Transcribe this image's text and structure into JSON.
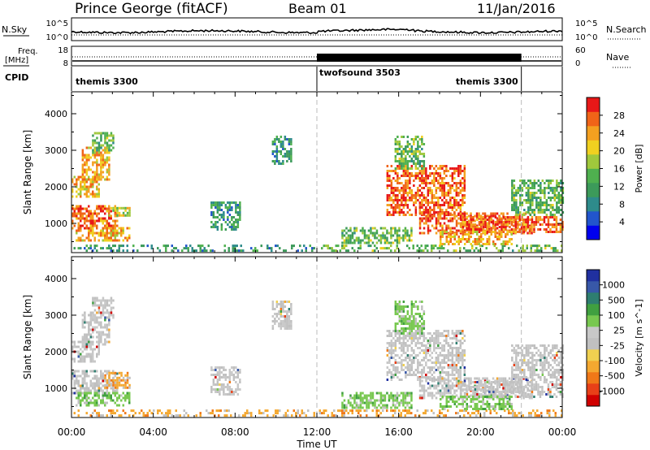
{
  "header": {
    "station": "Prince George (fitACF)",
    "beam": "Beam 01",
    "date": "11/Jan/2016"
  },
  "noise_panel": {
    "left_label": "N.Sky",
    "left_ticks": [
      "10^5",
      "10^0"
    ],
    "right_ticks": [
      "10^5",
      "10^0"
    ],
    "right_label": "N.Search"
  },
  "freq_panel": {
    "left_label_top": "Freq.",
    "left_label_bottom": "[MHz]",
    "left_ticks": [
      "18",
      "8"
    ],
    "right_ticks": [
      "60",
      "0"
    ],
    "right_label": "Nave"
  },
  "cpid": {
    "label": "CPID",
    "modes": [
      {
        "name": "themis 3300",
        "start_h": 0,
        "end_h": 12
      },
      {
        "name": "twofsound 3503",
        "start_h": 12,
        "end_h": 22
      },
      {
        "name": "themis 3300",
        "start_h": 22,
        "end_h": 24
      }
    ]
  },
  "x_axis": {
    "label": "Time UT",
    "ticks": [
      "00:00",
      "04:00",
      "08:00",
      "12:00",
      "16:00",
      "20:00",
      "00:00"
    ],
    "tick_hours": [
      0,
      4,
      8,
      12,
      16,
      20,
      24
    ],
    "markers_h": [
      12,
      22
    ]
  },
  "colors": {
    "power": [
      "#0000ee",
      "#2255cc",
      "#2e8b8b",
      "#3c9a5a",
      "#4fb04f",
      "#a0c83c",
      "#f0d020",
      "#f4a020",
      "#f06418",
      "#e81818"
    ],
    "velocity": [
      "#d00000",
      "#e84018",
      "#f07818",
      "#f4a830",
      "#f0d050",
      "#c0c0c0",
      "#c8c8c8",
      "#78c850",
      "#40a040",
      "#2e7e70",
      "#3858a8",
      "#2030a0"
    ]
  },
  "chart_data": [
    {
      "type": "heatmap",
      "name": "power",
      "ylabel": "Slant Range [km]",
      "ylim": [
        200,
        4600
      ],
      "yticks": [
        "1000",
        "2000",
        "3000",
        "4000"
      ],
      "ytick_values": [
        1000,
        2000,
        3000,
        4000
      ],
      "colorbar_label": "Power [dB]",
      "colorbar_ticks": [
        "4",
        "8",
        "12",
        "16",
        "20",
        "24",
        "28"
      ],
      "colorbar_range": [
        0,
        30
      ],
      "regions": [
        {
          "t0": 0.0,
          "t1": 1.3,
          "r0": 1700,
          "r1": 2300,
          "level": 20
        },
        {
          "t0": 0.5,
          "t1": 1.8,
          "r0": 2200,
          "r1": 3100,
          "level": 20
        },
        {
          "t0": 1.0,
          "t1": 2.0,
          "r0": 2900,
          "r1": 3500,
          "level": 12
        },
        {
          "t0": 0.0,
          "t1": 2.2,
          "r0": 850,
          "r1": 1500,
          "level": 24
        },
        {
          "t0": 0.2,
          "t1": 2.8,
          "r0": 500,
          "r1": 900,
          "level": 20
        },
        {
          "t0": 1.8,
          "t1": 2.8,
          "r0": 1200,
          "r1": 1450,
          "level": 16
        },
        {
          "t0": 0.0,
          "t1": 11.9,
          "r0": 220,
          "r1": 420,
          "level": 8
        },
        {
          "t0": 6.8,
          "t1": 8.2,
          "r0": 800,
          "r1": 1600,
          "level": 8
        },
        {
          "t0": 9.8,
          "t1": 10.7,
          "r0": 2600,
          "r1": 3400,
          "level": 8
        },
        {
          "t0": 12.0,
          "t1": 24.0,
          "r0": 220,
          "r1": 420,
          "level": 12
        },
        {
          "t0": 13.2,
          "t1": 16.6,
          "r0": 450,
          "r1": 900,
          "level": 12
        },
        {
          "t0": 15.4,
          "t1": 19.2,
          "r0": 1200,
          "r1": 2600,
          "level": 24
        },
        {
          "t0": 15.8,
          "t1": 17.2,
          "r0": 2500,
          "r1": 3400,
          "level": 12
        },
        {
          "t0": 17.0,
          "t1": 22.5,
          "r0": 700,
          "r1": 1300,
          "level": 24
        },
        {
          "t0": 19.0,
          "t1": 24.0,
          "r0": 750,
          "r1": 1200,
          "level": 24
        },
        {
          "t0": 21.5,
          "t1": 24.0,
          "r0": 1200,
          "r1": 2200,
          "level": 12
        },
        {
          "t0": 18.0,
          "t1": 21.5,
          "r0": 400,
          "r1": 800,
          "level": 20
        }
      ]
    },
    {
      "type": "heatmap",
      "name": "velocity",
      "ylabel": "Slant Range [km]",
      "ylim": [
        200,
        4600
      ],
      "yticks": [
        "1000",
        "2000",
        "3000",
        "4000"
      ],
      "ytick_values": [
        1000,
        2000,
        3000,
        4000
      ],
      "colorbar_label": "Velocity [m s^-1]",
      "colorbar_ticks": [
        "1000",
        "500",
        "100",
        "25",
        "-25",
        "-100",
        "-500",
        "-1000"
      ],
      "regions": [
        {
          "t0": 0.0,
          "t1": 1.3,
          "r0": 1700,
          "r1": 2300,
          "level": 0
        },
        {
          "t0": 0.5,
          "t1": 1.8,
          "r0": 2200,
          "r1": 3100,
          "level": 0
        },
        {
          "t0": 1.0,
          "t1": 2.0,
          "r0": 2900,
          "r1": 3500,
          "level": 0
        },
        {
          "t0": 0.0,
          "t1": 2.2,
          "r0": 850,
          "r1": 1500,
          "level": 0
        },
        {
          "t0": 1.6,
          "t1": 2.8,
          "r0": 1000,
          "r1": 1450,
          "level": -100
        },
        {
          "t0": 0.2,
          "t1": 2.8,
          "r0": 500,
          "r1": 900,
          "level": 100
        },
        {
          "t0": 0.0,
          "t1": 11.9,
          "r0": 220,
          "r1": 420,
          "level": -100
        },
        {
          "t0": 6.8,
          "t1": 8.2,
          "r0": 800,
          "r1": 1600,
          "level": 0
        },
        {
          "t0": 9.8,
          "t1": 10.7,
          "r0": 2600,
          "r1": 3400,
          "level": 0
        },
        {
          "t0": 12.0,
          "t1": 24.0,
          "r0": 220,
          "r1": 420,
          "level": -100
        },
        {
          "t0": 13.2,
          "t1": 16.6,
          "r0": 450,
          "r1": 900,
          "level": 100
        },
        {
          "t0": 15.4,
          "t1": 19.2,
          "r0": 1200,
          "r1": 2600,
          "level": 0
        },
        {
          "t0": 15.8,
          "t1": 17.2,
          "r0": 2500,
          "r1": 3400,
          "level": 100
        },
        {
          "t0": 17.0,
          "t1": 22.5,
          "r0": 700,
          "r1": 1300,
          "level": 0
        },
        {
          "t0": 19.0,
          "t1": 24.0,
          "r0": 750,
          "r1": 1200,
          "level": 0
        },
        {
          "t0": 21.5,
          "t1": 24.0,
          "r0": 1200,
          "r1": 2200,
          "level": 0
        },
        {
          "t0": 18.0,
          "t1": 21.5,
          "r0": 400,
          "r1": 800,
          "level": 100
        }
      ]
    }
  ]
}
